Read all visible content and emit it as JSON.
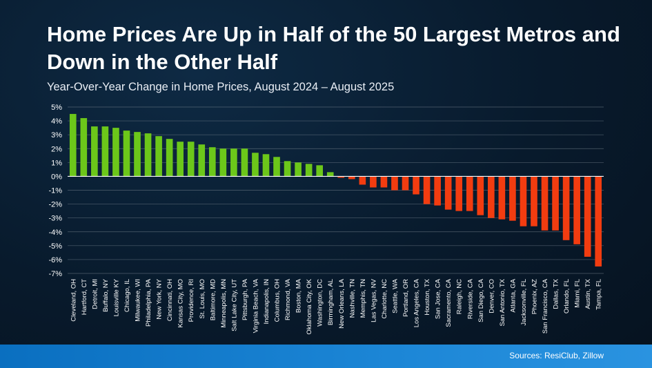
{
  "header": {
    "title": "Home Prices Are Up in Half of the 50 Largest Metros and Down in the Other Half",
    "subtitle": "Year-Over-Year Change in Home Prices, August 2024 – August 2025"
  },
  "footer": {
    "source": "Sources: ResiClub, Zillow"
  },
  "colors": {
    "positive": "#6cc71a",
    "negative": "#f23c10",
    "grid": "#7f8a96",
    "zero_line": "#ffffff"
  },
  "chart_data": {
    "type": "bar",
    "ylim": [
      -7,
      5
    ],
    "yticks": [
      5,
      4,
      3,
      2,
      1,
      0,
      -1,
      -2,
      -3,
      -4,
      -5,
      -6,
      -7
    ],
    "ytick_suffix": "%",
    "grid": true,
    "categories": [
      "Cleveland, OH",
      "Hartford, CT",
      "Detroit, MI",
      "Buffalo, NY",
      "Louisville KY",
      "Chicago, IL",
      "Milwaukee, WI",
      "Philadelphia, PA",
      "New York, NY",
      "Cincinnati, OH",
      "Kansas City, MO",
      "Providence, RI",
      "St. Louis, MO",
      "Baltimore, MD",
      "Minneapolis, MN",
      "Salt Lake City, UT",
      "Pittsburgh, PA",
      "Virginia Beach, VA",
      "Indianapolis, IN",
      "Columbus, OH",
      "Richmond, VA",
      "Boston, MA",
      "Oklahoma City, OK",
      "Washington, DC",
      "Birmingham, AL",
      "New Orleans, LA",
      "Nashville, TN",
      "Memphis, TN",
      "Las Vegas, NV",
      "Charlotte, NC",
      "Seattle, WA",
      "Portland, OR",
      "Los Angeles, CA",
      "Houston, TX",
      "San Jose, CA",
      "Sacramento, CA",
      "Raleigh, NC",
      "Riverside, CA",
      "San Diego, CA",
      "Denver, CO",
      "San Antonio, TX",
      "Atlanta, GA",
      "Jacksonville, FL",
      "Phoenix, AZ",
      "San Francisco, CA",
      "Dallas, TX",
      "Orlando, FL",
      "Miami, FL",
      "Austin, TX",
      "Tampa, FL"
    ],
    "values": [
      4.5,
      4.2,
      3.6,
      3.6,
      3.5,
      3.3,
      3.2,
      3.1,
      2.9,
      2.7,
      2.5,
      2.5,
      2.3,
      2.1,
      2.0,
      2.0,
      2.0,
      1.7,
      1.6,
      1.4,
      1.1,
      1.0,
      0.9,
      0.8,
      0.3,
      -0.1,
      -0.2,
      -0.6,
      -0.8,
      -0.8,
      -1.0,
      -1.0,
      -1.3,
      -2.0,
      -2.1,
      -2.4,
      -2.5,
      -2.5,
      -2.8,
      -3.0,
      -3.1,
      -3.2,
      -3.6,
      -3.6,
      -3.9,
      -3.9,
      -4.6,
      -4.9,
      -5.8,
      -6.5
    ]
  }
}
